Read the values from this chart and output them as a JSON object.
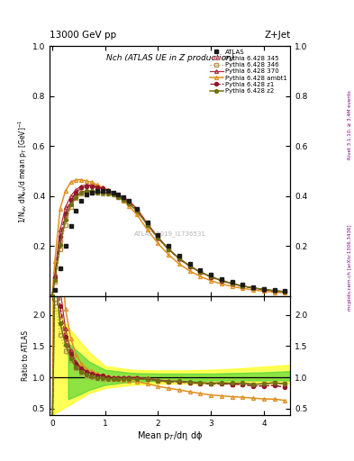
{
  "title_main": "Nch (ATLAS UE in Z production)",
  "header_left": "13000 GeV pp",
  "header_right": "Z+Jet",
  "watermark": "ATLAS_2019_I1736531",
  "rivet_text": "Rivet 3.1.10, ≥ 3.4M events",
  "mcplots_text": "mcplots.cern.ch [arXiv:1306.3436]",
  "ylabel_main": "1/N$_{ev}$ dN$_{ev}$/d mean p$_T$ [GeV]$^{-1}$",
  "ylabel_ratio": "Ratio to ATLAS",
  "xlabel": "Mean p$_T$/dη dϕ",
  "xlim": [
    -0.05,
    4.5
  ],
  "ylim_main": [
    0,
    1.0
  ],
  "ylim_ratio": [
    0.4,
    2.3
  ],
  "yticks_main": [
    0.2,
    0.4,
    0.6,
    0.8,
    1.0
  ],
  "yticks_ratio": [
    0.5,
    1.0,
    1.5,
    2.0
  ],
  "xticks": [
    0,
    1,
    2,
    3,
    4
  ],
  "x_atlas": [
    0.05,
    0.15,
    0.25,
    0.35,
    0.45,
    0.55,
    0.65,
    0.75,
    0.85,
    0.95,
    1.05,
    1.15,
    1.25,
    1.35,
    1.45,
    1.6,
    1.8,
    2.0,
    2.2,
    2.4,
    2.6,
    2.8,
    3.0,
    3.2,
    3.4,
    3.6,
    3.8,
    4.0,
    4.2,
    4.4
  ],
  "y_atlas": [
    0.025,
    0.11,
    0.2,
    0.28,
    0.34,
    0.38,
    0.405,
    0.415,
    0.42,
    0.42,
    0.42,
    0.415,
    0.405,
    0.395,
    0.38,
    0.35,
    0.295,
    0.245,
    0.2,
    0.16,
    0.13,
    0.105,
    0.085,
    0.068,
    0.055,
    0.044,
    0.036,
    0.029,
    0.023,
    0.019
  ],
  "x_mc": [
    0.0,
    0.05,
    0.15,
    0.25,
    0.35,
    0.45,
    0.55,
    0.65,
    0.75,
    0.85,
    0.95,
    1.05,
    1.15,
    1.25,
    1.35,
    1.45,
    1.6,
    1.8,
    2.0,
    2.2,
    2.4,
    2.6,
    2.8,
    3.0,
    3.2,
    3.4,
    3.6,
    3.8,
    4.0,
    4.2,
    4.4
  ],
  "y_345": [
    0.0,
    0.07,
    0.22,
    0.32,
    0.38,
    0.41,
    0.43,
    0.44,
    0.44,
    0.43,
    0.43,
    0.42,
    0.41,
    0.4,
    0.39,
    0.375,
    0.345,
    0.285,
    0.23,
    0.185,
    0.148,
    0.118,
    0.095,
    0.076,
    0.061,
    0.049,
    0.039,
    0.031,
    0.025,
    0.02,
    0.016
  ],
  "y_346": [
    0.0,
    0.055,
    0.185,
    0.285,
    0.355,
    0.39,
    0.41,
    0.415,
    0.415,
    0.415,
    0.41,
    0.41,
    0.405,
    0.395,
    0.385,
    0.37,
    0.34,
    0.285,
    0.232,
    0.187,
    0.149,
    0.119,
    0.095,
    0.076,
    0.061,
    0.049,
    0.039,
    0.032,
    0.026,
    0.021,
    0.017
  ],
  "y_370": [
    0.0,
    0.09,
    0.265,
    0.355,
    0.4,
    0.425,
    0.44,
    0.445,
    0.445,
    0.44,
    0.435,
    0.425,
    0.415,
    0.405,
    0.395,
    0.38,
    0.35,
    0.29,
    0.235,
    0.188,
    0.15,
    0.12,
    0.096,
    0.077,
    0.062,
    0.049,
    0.04,
    0.032,
    0.026,
    0.021,
    0.017
  ],
  "y_ambt1": [
    0.0,
    0.14,
    0.35,
    0.42,
    0.455,
    0.465,
    0.465,
    0.46,
    0.455,
    0.445,
    0.435,
    0.425,
    0.41,
    0.395,
    0.38,
    0.36,
    0.325,
    0.265,
    0.21,
    0.165,
    0.128,
    0.1,
    0.078,
    0.061,
    0.048,
    0.038,
    0.03,
    0.024,
    0.019,
    0.015,
    0.012
  ],
  "y_z1": [
    0.0,
    0.075,
    0.235,
    0.33,
    0.385,
    0.415,
    0.435,
    0.44,
    0.44,
    0.435,
    0.43,
    0.42,
    0.41,
    0.4,
    0.39,
    0.375,
    0.345,
    0.285,
    0.232,
    0.186,
    0.149,
    0.119,
    0.095,
    0.076,
    0.061,
    0.049,
    0.039,
    0.031,
    0.025,
    0.02,
    0.016
  ],
  "y_z2": [
    0.0,
    0.065,
    0.205,
    0.305,
    0.365,
    0.395,
    0.415,
    0.42,
    0.42,
    0.415,
    0.415,
    0.41,
    0.405,
    0.395,
    0.385,
    0.37,
    0.34,
    0.285,
    0.232,
    0.187,
    0.15,
    0.12,
    0.096,
    0.077,
    0.062,
    0.05,
    0.04,
    0.032,
    0.026,
    0.021,
    0.017
  ],
  "color_345": "#d46a7a",
  "color_346": "#b89850",
  "color_370": "#b03040",
  "color_ambt1": "#e09020",
  "color_z1": "#901828",
  "color_z2": "#707010",
  "color_atlas": "#1a1a1a",
  "band_yellow_x": [
    0.0,
    0.3,
    0.5,
    0.7,
    1.0,
    1.5,
    2.0,
    2.5,
    3.0,
    3.5,
    4.0,
    4.5
  ],
  "band_yellow_lo": [
    0.4,
    0.55,
    0.65,
    0.75,
    0.83,
    0.88,
    0.9,
    0.9,
    0.9,
    0.9,
    0.9,
    0.9
  ],
  "band_yellow_hi": [
    2.2,
    1.8,
    1.6,
    1.4,
    1.18,
    1.12,
    1.11,
    1.11,
    1.12,
    1.14,
    1.17,
    1.2
  ],
  "band_green_x": [
    0.3,
    0.5,
    0.7,
    1.0,
    1.5,
    2.0,
    2.5,
    3.0,
    3.5,
    4.0,
    4.5
  ],
  "band_green_lo": [
    0.65,
    0.72,
    0.8,
    0.88,
    0.93,
    0.94,
    0.94,
    0.95,
    0.95,
    0.95,
    0.95
  ],
  "band_green_hi": [
    1.55,
    1.4,
    1.25,
    1.12,
    1.07,
    1.06,
    1.06,
    1.06,
    1.07,
    1.08,
    1.1
  ]
}
